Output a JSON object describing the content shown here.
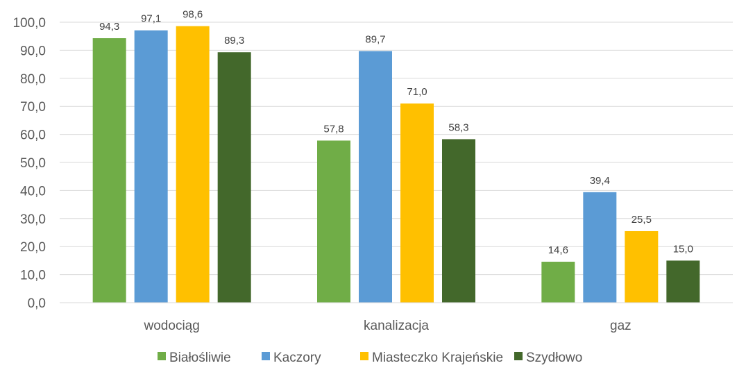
{
  "chart_data": {
    "type": "bar",
    "categories": [
      "wodociąg",
      "kanalizacja",
      "gaz"
    ],
    "series": [
      {
        "name": "Białośliwie",
        "values": [
          94.3,
          57.8,
          14.6
        ],
        "color": "#70ad47"
      },
      {
        "name": "Kaczory",
        "values": [
          97.1,
          89.7,
          39.4
        ],
        "color": "#5b9bd5"
      },
      {
        "name": "Miasteczko Krajeńskie",
        "values": [
          98.6,
          71.0,
          25.5
        ],
        "color": "#ffc000"
      },
      {
        "name": "Szydłowo",
        "values": [
          89.3,
          58.3,
          15.0
        ],
        "color": "#43682b"
      }
    ],
    "y_ticks": [
      "0,0",
      "10,0",
      "20,0",
      "30,0",
      "40,0",
      "50,0",
      "60,0",
      "70,0",
      "80,0",
      "90,0",
      "100,0"
    ],
    "data_labels": [
      [
        "94,3",
        "57,8",
        "14,6"
      ],
      [
        "97,1",
        "89,7",
        "39,4"
      ],
      [
        "98,6",
        "71,0",
        "25,5"
      ],
      [
        "89,3",
        "58,3",
        "15,0"
      ]
    ],
    "ylim": [
      0,
      100
    ],
    "grid": true,
    "legend": "bottom",
    "gridline_color": "#d9d9d9"
  }
}
